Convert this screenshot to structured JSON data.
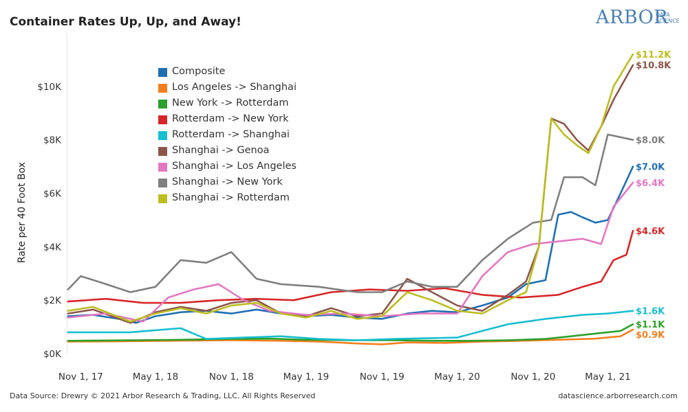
{
  "header": {
    "title": "Container Rates Up, Up, and Away!"
  },
  "logo": {
    "main": "ARBOR",
    "sub_line1": "DATA",
    "sub_line2": "SCIENCE"
  },
  "footer": {
    "left": "Data Source: Drewry © 2021 Arbor Research & Trading, LLC. All Rights Reserved",
    "right": "datascience.arborresearch.com"
  },
  "chart_data": {
    "type": "line",
    "title": "Container Rates Up, Up, and Away!",
    "xlabel": "",
    "ylabel": "Rate per 40 Foot Box",
    "ylim": [
      0,
      12000
    ],
    "xlim": [
      "2017-09-28",
      "2021-08-20"
    ],
    "y_ticks": [
      {
        "value": 0,
        "label": "$0K"
      },
      {
        "value": 2000,
        "label": "$2K"
      },
      {
        "value": 4000,
        "label": "$4K"
      },
      {
        "value": 6000,
        "label": "$6K"
      },
      {
        "value": 8000,
        "label": "$8K"
      },
      {
        "value": 10000,
        "label": "$10K"
      }
    ],
    "x_ticks": [
      {
        "date": "2017-11-01",
        "label": "Nov 1, 17"
      },
      {
        "date": "2018-05-01",
        "label": "May 1, 18"
      },
      {
        "date": "2018-11-01",
        "label": "Nov 1, 18"
      },
      {
        "date": "2019-05-01",
        "label": "May 1, 19"
      },
      {
        "date": "2019-11-01",
        "label": "Nov 1, 19"
      },
      {
        "date": "2020-05-01",
        "label": "May 1, 20"
      },
      {
        "date": "2020-11-01",
        "label": "Nov 1, 20"
      },
      {
        "date": "2021-05-01",
        "label": "May 1, 21"
      }
    ],
    "grid": false,
    "legend": "top-left",
    "series": [
      {
        "name": "Composite",
        "color": "#1f6fb2",
        "end_label": "$7.0K",
        "points": [
          [
            "2017-10-01",
            1400
          ],
          [
            "2017-12-01",
            1450
          ],
          [
            "2018-02-01",
            1300
          ],
          [
            "2018-03-15",
            1150
          ],
          [
            "2018-05-01",
            1400
          ],
          [
            "2018-07-01",
            1550
          ],
          [
            "2018-09-01",
            1600
          ],
          [
            "2018-11-01",
            1500
          ],
          [
            "2019-01-01",
            1650
          ],
          [
            "2019-03-01",
            1500
          ],
          [
            "2019-05-01",
            1400
          ],
          [
            "2019-07-01",
            1450
          ],
          [
            "2019-09-01",
            1350
          ],
          [
            "2019-11-01",
            1300
          ],
          [
            "2020-01-01",
            1500
          ],
          [
            "2020-03-01",
            1600
          ],
          [
            "2020-05-01",
            1550
          ],
          [
            "2020-07-01",
            1800
          ],
          [
            "2020-09-01",
            2100
          ],
          [
            "2020-10-15",
            2600
          ],
          [
            "2020-12-01",
            2750
          ],
          [
            "2021-01-01",
            5200
          ],
          [
            "2021-02-01",
            5300
          ],
          [
            "2021-03-01",
            5100
          ],
          [
            "2021-04-01",
            4900
          ],
          [
            "2021-05-01",
            5000
          ],
          [
            "2021-06-01",
            6000
          ],
          [
            "2021-07-01",
            7000
          ]
        ]
      },
      {
        "name": "Los Angeles -> Shanghai",
        "color": "#f47f1f",
        "end_label": "$0.9K",
        "points": [
          [
            "2017-10-01",
            450
          ],
          [
            "2018-02-01",
            460
          ],
          [
            "2018-06-01",
            480
          ],
          [
            "2018-11-01",
            500
          ],
          [
            "2019-03-01",
            480
          ],
          [
            "2019-06-01",
            450
          ],
          [
            "2019-09-01",
            380
          ],
          [
            "2019-11-01",
            350
          ],
          [
            "2020-01-01",
            420
          ],
          [
            "2020-04-01",
            400
          ],
          [
            "2020-07-01",
            450
          ],
          [
            "2020-10-01",
            480
          ],
          [
            "2021-01-01",
            520
          ],
          [
            "2021-04-01",
            560
          ],
          [
            "2021-06-01",
            650
          ],
          [
            "2021-07-01",
            900
          ]
        ]
      },
      {
        "name": "New York -> Rotterdam",
        "color": "#2ca02c",
        "end_label": "$1.1K",
        "points": [
          [
            "2017-10-01",
            480
          ],
          [
            "2018-03-01",
            500
          ],
          [
            "2018-07-01",
            520
          ],
          [
            "2018-11-01",
            550
          ],
          [
            "2019-02-01",
            560
          ],
          [
            "2019-05-01",
            520
          ],
          [
            "2019-09-01",
            500
          ],
          [
            "2019-12-01",
            500
          ],
          [
            "2020-03-01",
            480
          ],
          [
            "2020-06-01",
            480
          ],
          [
            "2020-09-01",
            500
          ],
          [
            "2020-12-01",
            550
          ],
          [
            "2021-02-01",
            650
          ],
          [
            "2021-04-01",
            750
          ],
          [
            "2021-06-01",
            850
          ],
          [
            "2021-07-01",
            1100
          ]
        ]
      },
      {
        "name": "Rotterdam -> New York",
        "color": "#d62728",
        "end_label": "$4.6K",
        "points": [
          [
            "2017-10-01",
            1950
          ],
          [
            "2018-01-01",
            2050
          ],
          [
            "2018-04-01",
            1900
          ],
          [
            "2018-07-01",
            1900
          ],
          [
            "2018-10-01",
            2000
          ],
          [
            "2019-01-01",
            2050
          ],
          [
            "2019-04-01",
            2000
          ],
          [
            "2019-07-01",
            2300
          ],
          [
            "2019-10-01",
            2400
          ],
          [
            "2020-01-01",
            2350
          ],
          [
            "2020-04-01",
            2450
          ],
          [
            "2020-07-01",
            2200
          ],
          [
            "2020-10-01",
            2100
          ],
          [
            "2021-01-01",
            2200
          ],
          [
            "2021-03-01",
            2500
          ],
          [
            "2021-04-15",
            2700
          ],
          [
            "2021-05-15",
            3500
          ],
          [
            "2021-06-15",
            3700
          ],
          [
            "2021-07-01",
            4600
          ]
        ]
      },
      {
        "name": "Rotterdam -> Shanghai",
        "color": "#17becf",
        "end_label": "$1.6K",
        "points": [
          [
            "2017-10-01",
            800
          ],
          [
            "2018-03-01",
            800
          ],
          [
            "2018-07-01",
            950
          ],
          [
            "2018-09-01",
            550
          ],
          [
            "2018-12-01",
            600
          ],
          [
            "2019-03-01",
            650
          ],
          [
            "2019-06-01",
            550
          ],
          [
            "2019-09-01",
            500
          ],
          [
            "2019-12-01",
            550
          ],
          [
            "2020-03-01",
            580
          ],
          [
            "2020-05-01",
            600
          ],
          [
            "2020-07-01",
            850
          ],
          [
            "2020-09-01",
            1100
          ],
          [
            "2020-12-01",
            1300
          ],
          [
            "2021-03-01",
            1450
          ],
          [
            "2021-05-01",
            1500
          ],
          [
            "2021-07-01",
            1600
          ]
        ]
      },
      {
        "name": "Shanghai -> Genoa",
        "color": "#8c564b",
        "end_label": "$10.8K",
        "points": [
          [
            "2017-10-01",
            1500
          ],
          [
            "2017-12-01",
            1650
          ],
          [
            "2018-03-01",
            1150
          ],
          [
            "2018-05-01",
            1550
          ],
          [
            "2018-07-01",
            1750
          ],
          [
            "2018-09-01",
            1600
          ],
          [
            "2018-11-01",
            1900
          ],
          [
            "2019-01-01",
            2000
          ],
          [
            "2019-03-01",
            1500
          ],
          [
            "2019-05-01",
            1400
          ],
          [
            "2019-07-01",
            1700
          ],
          [
            "2019-09-01",
            1400
          ],
          [
            "2019-11-01",
            1500
          ],
          [
            "2020-01-01",
            2800
          ],
          [
            "2020-03-01",
            2300
          ],
          [
            "2020-05-01",
            1800
          ],
          [
            "2020-07-01",
            1600
          ],
          [
            "2020-09-01",
            2200
          ],
          [
            "2020-10-15",
            2700
          ],
          [
            "2020-11-15",
            4000
          ],
          [
            "2020-12-15",
            8800
          ],
          [
            "2021-01-15",
            8600
          ],
          [
            "2021-02-15",
            8000
          ],
          [
            "2021-03-15",
            7600
          ],
          [
            "2021-04-15",
            8500
          ],
          [
            "2021-05-15",
            9500
          ],
          [
            "2021-07-01",
            10800
          ]
        ]
      },
      {
        "name": "Shanghai -> Los Angeles",
        "color": "#e377c2",
        "end_label": "$6.4K",
        "points": [
          [
            "2017-10-01",
            1350
          ],
          [
            "2018-01-01",
            1500
          ],
          [
            "2018-04-01",
            1200
          ],
          [
            "2018-06-01",
            2100
          ],
          [
            "2018-08-01",
            2400
          ],
          [
            "2018-10-01",
            2600
          ],
          [
            "2018-12-01",
            2000
          ],
          [
            "2019-02-01",
            1600
          ],
          [
            "2019-05-01",
            1450
          ],
          [
            "2019-08-01",
            1500
          ],
          [
            "2019-11-01",
            1400
          ],
          [
            "2020-02-01",
            1500
          ],
          [
            "2020-05-01",
            1500
          ],
          [
            "2020-07-01",
            2900
          ],
          [
            "2020-09-01",
            3800
          ],
          [
            "2020-11-01",
            4100
          ],
          [
            "2021-01-01",
            4200
          ],
          [
            "2021-03-01",
            4300
          ],
          [
            "2021-04-15",
            4100
          ],
          [
            "2021-05-15",
            5500
          ],
          [
            "2021-07-01",
            6400
          ]
        ]
      },
      {
        "name": "Shanghai -> New York",
        "color": "#7f7f7f",
        "end_label": "$8.0K",
        "points": [
          [
            "2017-10-01",
            2400
          ],
          [
            "2017-11-01",
            2900
          ],
          [
            "2018-01-01",
            2600
          ],
          [
            "2018-03-01",
            2300
          ],
          [
            "2018-05-01",
            2500
          ],
          [
            "2018-07-01",
            3500
          ],
          [
            "2018-09-01",
            3400
          ],
          [
            "2018-11-01",
            3800
          ],
          [
            "2019-01-01",
            2800
          ],
          [
            "2019-03-01",
            2600
          ],
          [
            "2019-06-01",
            2500
          ],
          [
            "2019-09-01",
            2300
          ],
          [
            "2019-11-01",
            2300
          ],
          [
            "2020-01-01",
            2700
          ],
          [
            "2020-03-01",
            2500
          ],
          [
            "2020-05-01",
            2500
          ],
          [
            "2020-07-01",
            3500
          ],
          [
            "2020-09-01",
            4300
          ],
          [
            "2020-11-01",
            4900
          ],
          [
            "2020-12-15",
            5000
          ],
          [
            "2021-01-15",
            6600
          ],
          [
            "2021-03-01",
            6600
          ],
          [
            "2021-04-01",
            6300
          ],
          [
            "2021-05-01",
            8200
          ],
          [
            "2021-07-01",
            8000
          ]
        ]
      },
      {
        "name": "Shanghai -> Rotterdam",
        "color": "#bcbd22",
        "end_label": "$11.2K",
        "points": [
          [
            "2017-10-01",
            1600
          ],
          [
            "2017-12-01",
            1750
          ],
          [
            "2018-03-01",
            1200
          ],
          [
            "2018-05-01",
            1500
          ],
          [
            "2018-07-01",
            1700
          ],
          [
            "2018-09-01",
            1500
          ],
          [
            "2018-11-01",
            1800
          ],
          [
            "2019-01-01",
            1900
          ],
          [
            "2019-03-01",
            1500
          ],
          [
            "2019-05-01",
            1350
          ],
          [
            "2019-07-01",
            1600
          ],
          [
            "2019-09-01",
            1300
          ],
          [
            "2019-11-01",
            1400
          ],
          [
            "2020-01-01",
            2300
          ],
          [
            "2020-03-01",
            2000
          ],
          [
            "2020-05-01",
            1600
          ],
          [
            "2020-07-01",
            1500
          ],
          [
            "2020-09-01",
            2000
          ],
          [
            "2020-10-15",
            2300
          ],
          [
            "2020-11-15",
            4000
          ],
          [
            "2020-12-15",
            8800
          ],
          [
            "2021-01-15",
            8200
          ],
          [
            "2021-02-15",
            7800
          ],
          [
            "2021-03-15",
            7500
          ],
          [
            "2021-04-15",
            8500
          ],
          [
            "2021-05-15",
            10000
          ],
          [
            "2021-07-01",
            11200
          ]
        ]
      }
    ]
  }
}
